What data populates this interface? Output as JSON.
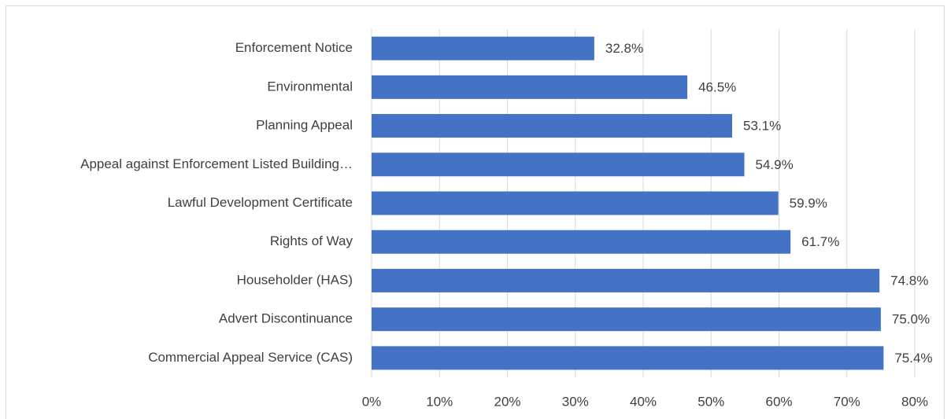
{
  "chart_data": {
    "type": "bar",
    "orientation": "horizontal",
    "categories": [
      "Enforcement Notice",
      "Environmental",
      "Planning Appeal",
      "Appeal against Enforcement Listed Building…",
      "Lawful Development Certificate",
      "Rights of Way",
      "Householder (HAS)",
      "Advert Discontinuance",
      "Commercial Appeal Service (CAS)"
    ],
    "values": [
      32.8,
      46.5,
      53.1,
      54.9,
      59.9,
      61.7,
      74.8,
      75.0,
      75.4
    ],
    "value_labels": [
      "32.8%",
      "46.5%",
      "53.1%",
      "54.9%",
      "59.9%",
      "61.7%",
      "74.8%",
      "75.0%",
      "75.4%"
    ],
    "color": "#4472c4",
    "xlim": [
      0,
      80
    ],
    "xticks": [
      {
        "value": 0,
        "label": "0%"
      },
      {
        "value": 10,
        "label": "10%"
      },
      {
        "value": 20,
        "label": "20%"
      },
      {
        "value": 30,
        "label": "30%"
      },
      {
        "value": 40,
        "label": "40%"
      },
      {
        "value": 50,
        "label": "50%"
      },
      {
        "value": 60,
        "label": "60%"
      },
      {
        "value": 70,
        "label": "70%"
      },
      {
        "value": 80,
        "label": "80%"
      }
    ],
    "grid": true
  }
}
